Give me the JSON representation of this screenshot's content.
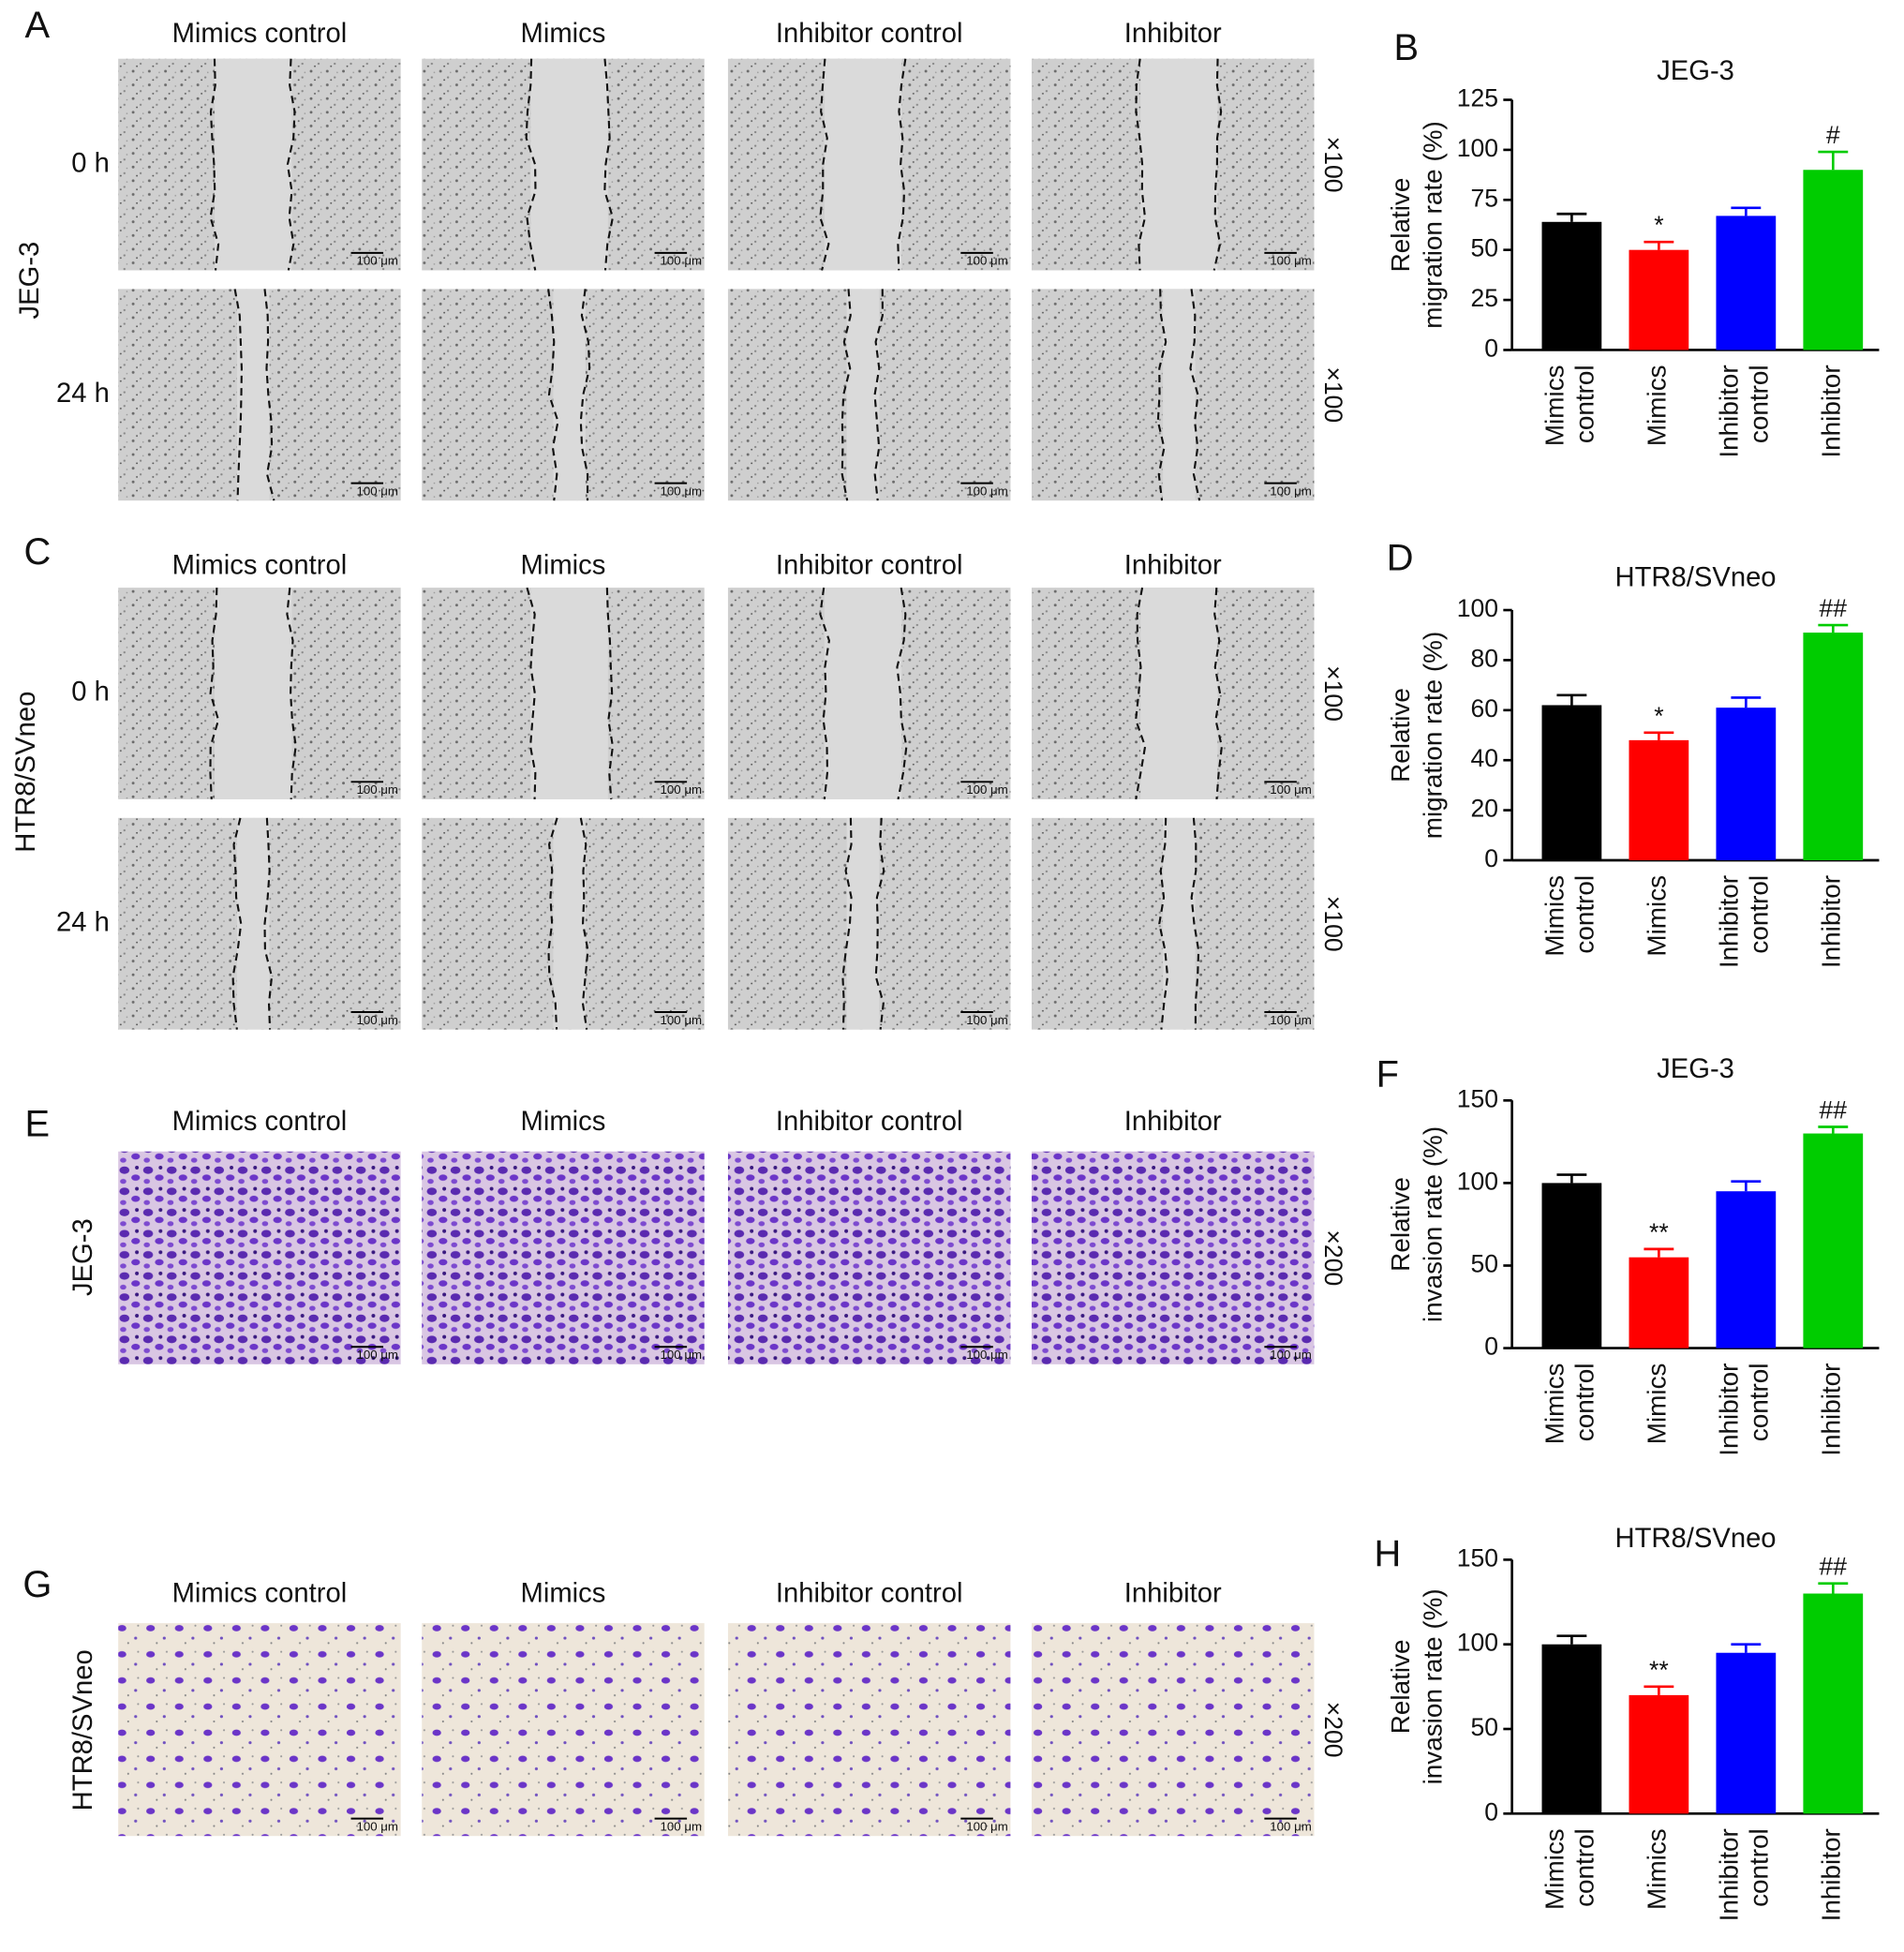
{
  "scale_bar": "100 μm",
  "image_panels": [
    {
      "label": "A",
      "cell_line": "JEG-3",
      "columns": [
        "Mimics control",
        "Mimics",
        "Inhibitor control",
        "Inhibitor"
      ],
      "rows": [
        "0 h",
        "24 h"
      ],
      "magnification": "×100"
    },
    {
      "label": "C",
      "cell_line": "HTR8/SVneo",
      "columns": [
        "Mimics control",
        "Mimics",
        "Inhibitor control",
        "Inhibitor"
      ],
      "rows": [
        "0 h",
        "24 h"
      ],
      "magnification": "×100"
    },
    {
      "label": "E",
      "cell_line": "JEG-3",
      "columns": [
        "Mimics control",
        "Mimics",
        "Inhibitor control",
        "Inhibitor"
      ],
      "magnification": "×200"
    },
    {
      "label": "G",
      "cell_line": "HTR8/SVneo",
      "columns": [
        "Mimics control",
        "Mimics",
        "Inhibitor control",
        "Inhibitor"
      ],
      "magnification": "×200"
    }
  ],
  "chart_data": [
    {
      "type": "bar",
      "panel": "B",
      "title": "JEG-3",
      "ylabel": [
        "Relative",
        "migration rate (%)"
      ],
      "categories": [
        "Mimics control",
        "Mimics",
        "Inhibitor control",
        "Inhibitor"
      ],
      "values": [
        64,
        50,
        67,
        90
      ],
      "errors": [
        4,
        4,
        4,
        9
      ],
      "colors": [
        "#000000",
        "#ff0000",
        "#0000ff",
        "#00cc00"
      ],
      "annotations": [
        null,
        "*",
        null,
        "#"
      ],
      "ylim": [
        0,
        125
      ],
      "yticks": [
        0,
        25,
        50,
        75,
        100,
        125
      ]
    },
    {
      "type": "bar",
      "panel": "D",
      "title": "HTR8/SVneo",
      "ylabel": [
        "Relative",
        "migration rate (%)"
      ],
      "categories": [
        "Mimics control",
        "Mimics",
        "Inhibitor control",
        "Inhibitor"
      ],
      "values": [
        62,
        48,
        61,
        91
      ],
      "errors": [
        4,
        3,
        4,
        3
      ],
      "colors": [
        "#000000",
        "#ff0000",
        "#0000ff",
        "#00cc00"
      ],
      "annotations": [
        null,
        "*",
        null,
        "##"
      ],
      "ylim": [
        0,
        100
      ],
      "yticks": [
        0,
        20,
        40,
        60,
        80,
        100
      ]
    },
    {
      "type": "bar",
      "panel": "F",
      "title": "JEG-3",
      "ylabel": [
        "Relative",
        "invasion rate (%)"
      ],
      "categories": [
        "Mimics control",
        "Mimics",
        "Inhibitor control",
        "Inhibitor"
      ],
      "values": [
        100,
        55,
        95,
        130
      ],
      "errors": [
        5,
        5,
        6,
        4
      ],
      "colors": [
        "#000000",
        "#ff0000",
        "#0000ff",
        "#00cc00"
      ],
      "annotations": [
        null,
        "**",
        null,
        "##"
      ],
      "ylim": [
        0,
        150
      ],
      "yticks": [
        0,
        50,
        100,
        150
      ]
    },
    {
      "type": "bar",
      "panel": "H",
      "title": "HTR8/SVneo",
      "ylabel": [
        "Relative",
        "invasion rate (%)"
      ],
      "categories": [
        "Mimics control",
        "Mimics",
        "Inhibitor control",
        "Inhibitor"
      ],
      "values": [
        100,
        70,
        95,
        130
      ],
      "errors": [
        5,
        5,
        5,
        6
      ],
      "colors": [
        "#000000",
        "#ff0000",
        "#0000ff",
        "#00cc00"
      ],
      "annotations": [
        null,
        "**",
        null,
        "##"
      ],
      "ylim": [
        0,
        150
      ],
      "yticks": [
        0,
        50,
        100,
        150
      ]
    }
  ]
}
